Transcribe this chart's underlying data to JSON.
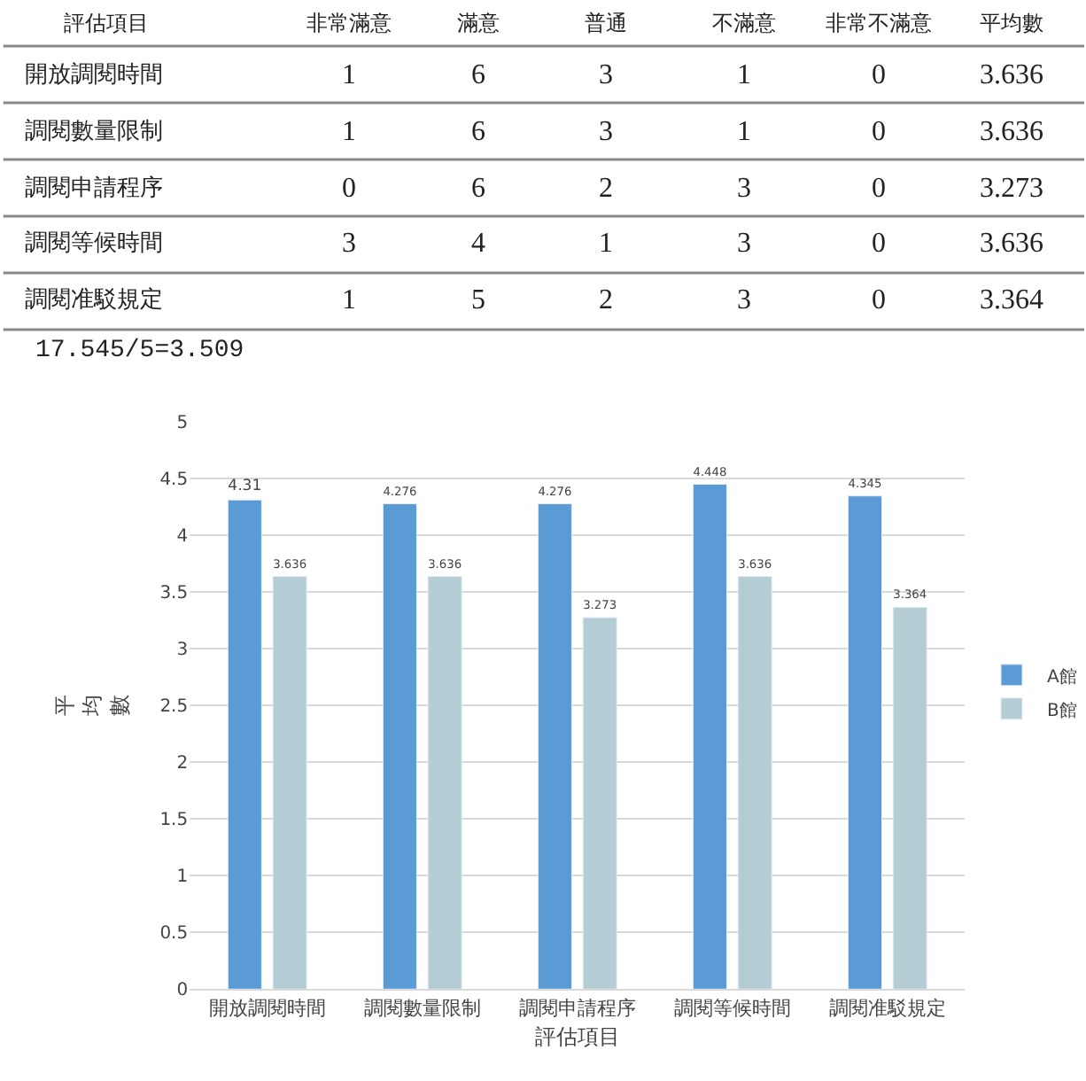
{
  "chart_data": [
    {
      "type": "heatmap",
      "ylabel": "評估項目",
      "categories": [
        "非常滿意",
        "滿意",
        "普通",
        "不滿意",
        "非常不滿意",
        "平均數"
      ],
      "y_categories": [
        "開放調閱時間",
        "調閱數量限制",
        "調閱申請程序",
        "調閱等候時間",
        "調閱准駁規定"
      ],
      "cells": [
        [
          1,
          6,
          3,
          1,
          0,
          3.636
        ],
        [
          1,
          6,
          3,
          1,
          0,
          3.636
        ],
        [
          0,
          6,
          2,
          3,
          0,
          3.273
        ],
        [
          3,
          4,
          1,
          3,
          0,
          3.636
        ],
        [
          1,
          5,
          2,
          3,
          0,
          3.364
        ]
      ],
      "annotations": [
        "17.545/5=3.509"
      ],
      "data_labels": true
    },
    {
      "type": "bar",
      "xlabel": "評估項目",
      "ylabel": "平均數",
      "categories": [
        "開放調閱時間",
        "調閱數量限制",
        "調閱申請程序",
        "調閱等候時間",
        "調閱准駁規定"
      ],
      "series": [
        {
          "name": "A館",
          "color": "#5b9bd5",
          "values": [
            4.31,
            4.276,
            4.276,
            4.448,
            4.345
          ]
        },
        {
          "name": "B館",
          "color": "#b4cdd4",
          "values": [
            3.636,
            3.636,
            3.273,
            3.636,
            3.364
          ]
        }
      ],
      "ylim": [
        0,
        5
      ],
      "yticks": [
        0,
        0.5,
        1,
        1.5,
        2,
        2.5,
        3,
        3.5,
        4,
        4.5,
        5
      ],
      "grid": "y",
      "legend": "right",
      "data_labels": true
    }
  ]
}
